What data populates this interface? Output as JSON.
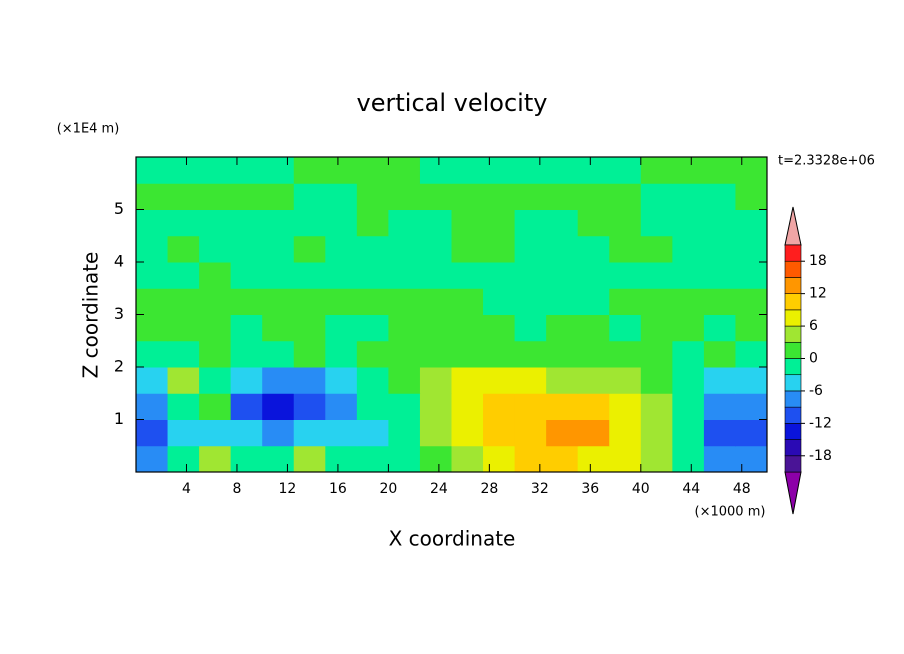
{
  "chart_data": {
    "type": "contour",
    "title": "vertical velocity",
    "x_label": "X coordinate",
    "y_label": "Z coordinate",
    "x_unit": "(×1000 m)",
    "y_unit": "(×1E4 m)",
    "annotation": "t=2.3328e+06",
    "xlim": [
      0,
      50
    ],
    "ylim": [
      0,
      6
    ],
    "xticks": [
      4,
      8,
      12,
      16,
      20,
      24,
      28,
      32,
      36,
      40,
      44,
      48
    ],
    "yticks": [
      1,
      2,
      3,
      4,
      5
    ],
    "x": [
      1.25,
      3.75,
      6.25,
      8.75,
      11.25,
      13.75,
      16.25,
      18.75,
      21.25,
      23.75,
      26.25,
      28.75,
      31.25,
      33.75,
      36.25,
      38.75,
      41.25,
      43.75,
      46.25,
      48.75
    ],
    "y": [
      0.25,
      0.75,
      1.25,
      1.75,
      2.25,
      2.75,
      3.25,
      3.75,
      4.25,
      4.75,
      5.25,
      5.75
    ],
    "z": [
      [
        -8,
        -2,
        4,
        -3,
        -2,
        4,
        -2,
        -3,
        -2,
        1,
        4,
        7,
        9,
        10,
        8,
        6,
        3,
        -2,
        -7,
        -9
      ],
      [
        -11,
        -5,
        -4,
        -5,
        -8,
        -6,
        -5,
        -4,
        -2,
        3,
        7,
        9,
        11,
        13,
        12,
        8,
        4,
        -3,
        -10,
        -12
      ],
      [
        -7,
        -3,
        2,
        -10,
        -13,
        -11,
        -7,
        -3,
        -1,
        4,
        8,
        10,
        10,
        10,
        9,
        6,
        3,
        -2,
        -7,
        -7
      ],
      [
        -4,
        3,
        -2,
        -4,
        -8,
        -8,
        -5,
        -2,
        1,
        3,
        6,
        6,
        6,
        5,
        4,
        3,
        2,
        -1,
        -4,
        -5
      ],
      [
        -2,
        -1,
        1,
        -1,
        -2,
        1,
        -1,
        1,
        1,
        2,
        2,
        2,
        1,
        1,
        1,
        1,
        1,
        -1,
        1,
        -2
      ],
      [
        1,
        1,
        1,
        -1,
        1,
        1,
        -1,
        -1,
        1,
        1,
        1,
        1,
        -1,
        1,
        1,
        -1,
        1,
        1,
        -1,
        1
      ],
      [
        1,
        1,
        1,
        1,
        1,
        1,
        1,
        1,
        1,
        1,
        1,
        -1,
        -1,
        -1,
        -1,
        1,
        1,
        1,
        1,
        1
      ],
      [
        -1,
        -1,
        1,
        -1,
        -1,
        -1,
        -1,
        -1,
        -1,
        -1,
        -1,
        -1,
        -1,
        -1,
        -1,
        -1,
        -1,
        -1,
        -1,
        -1
      ],
      [
        -1,
        1,
        -1,
        -1,
        -1,
        1,
        -1,
        -1,
        -1,
        -1,
        1,
        1,
        -1,
        -1,
        -1,
        1,
        1,
        -1,
        -1,
        -1
      ],
      [
        -1,
        -1,
        -1,
        -1,
        -1,
        -1,
        -1,
        1,
        -1,
        -1,
        1,
        1,
        -1,
        -1,
        1,
        1,
        -1,
        -1,
        -1,
        -1
      ],
      [
        1,
        1,
        1,
        1,
        1,
        -1,
        -1,
        1,
        1,
        1,
        1,
        1,
        1,
        1,
        1,
        1,
        -1,
        -1,
        -1,
        1
      ],
      [
        -1,
        -1,
        -1,
        -1,
        -1,
        1,
        1,
        1,
        1,
        -1,
        -1,
        -1,
        -1,
        -1,
        -1,
        -1,
        1,
        1,
        1,
        1
      ]
    ],
    "levels": [
      -21,
      -18,
      -15,
      -12,
      -9,
      -6,
      -3,
      0,
      3,
      6,
      9,
      12,
      15,
      18,
      21
    ],
    "colors": [
      "#8c00a8",
      "#4a1496",
      "#2a0ab4",
      "#0a14dc",
      "#1e50f0",
      "#288cf5",
      "#28d2f0",
      "#00f096",
      "#3ce632",
      "#a0e632",
      "#ebf000",
      "#ffcd00",
      "#ff9600",
      "#ff5a00",
      "#ff1e1e",
      "#f0a5a5"
    ],
    "colorbar_ticks": [
      -18,
      -12,
      -6,
      0,
      6,
      12,
      18
    ]
  }
}
